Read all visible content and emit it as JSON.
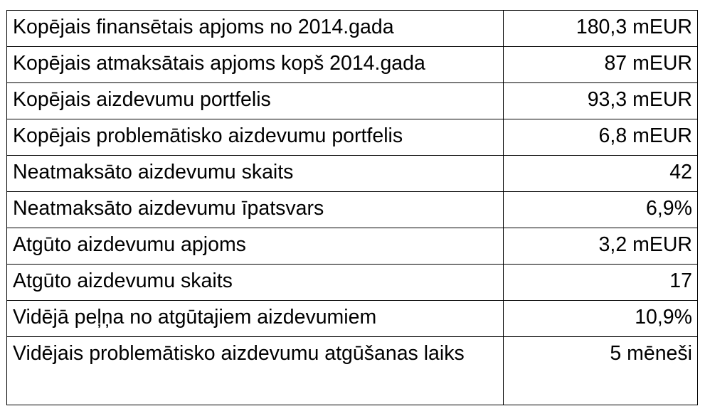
{
  "rows": [
    {
      "label": "Kopējais finansētais apjoms no 2014.gada",
      "value": "180,3 mEUR"
    },
    {
      "label": "Kopējais atmaksātais apjoms kopš 2014.gada",
      "value": "87 mEUR"
    },
    {
      "label": "Kopējais aizdevumu portfelis",
      "value": "93,3 mEUR"
    },
    {
      "label": "Kopējais problemātisko aizdevumu portfelis",
      "value": "6,8 mEUR"
    },
    {
      "label": "Neatmaksāto aizdevumu skaits",
      "value": "42"
    },
    {
      "label": "Neatmaksāto aizdevumu īpatsvars",
      "value": "6,9%"
    },
    {
      "label": "Atgūto aizdevumu apjoms",
      "value": "3,2 mEUR"
    },
    {
      "label": "Atgūto aizdevumu skaits",
      "value": "17"
    },
    {
      "label": "Vidējā peļņa no atgūtajiem aizdevumiem",
      "value": "10,9%"
    },
    {
      "label": "Vidējais problemātisko aizdevumu atgūšanas laiks",
      "value": "5 mēneši"
    }
  ]
}
